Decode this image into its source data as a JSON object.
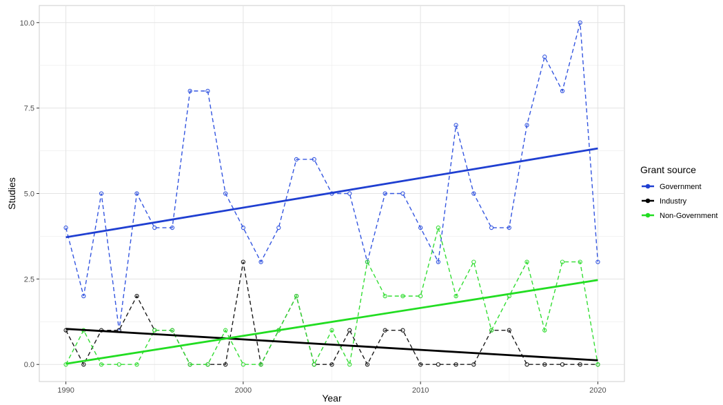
{
  "chart_data": {
    "type": "line",
    "xlabel": "Year",
    "ylabel": "Studies",
    "xlim": [
      1988.5,
      2021.5
    ],
    "ylim": [
      -0.5,
      10.5
    ],
    "x_ticks": [
      1990,
      2000,
      2010,
      2020
    ],
    "x_tick_labels": [
      "1990",
      "2000",
      "2010",
      "2020"
    ],
    "y_ticks": [
      0,
      2.5,
      5,
      7.5,
      10
    ],
    "y_tick_labels": [
      "0.0",
      "2.5",
      "5.0",
      "7.5",
      "10.0"
    ],
    "grid": true,
    "legend": {
      "title": "Grant source",
      "position": "right"
    },
    "x": [
      1990,
      1991,
      1992,
      1993,
      1994,
      1995,
      1996,
      1997,
      1998,
      1999,
      2000,
      2001,
      2002,
      2003,
      2004,
      2005,
      2006,
      2007,
      2008,
      2009,
      2010,
      2011,
      2012,
      2013,
      2014,
      2015,
      2016,
      2017,
      2018,
      2019,
      2020
    ],
    "series": [
      {
        "name": "Government",
        "color": "#1f3fd1",
        "dash_color": "#3355e0",
        "values": [
          4,
          2,
          5,
          1,
          5,
          4,
          4,
          8,
          8,
          5,
          4,
          3,
          4,
          6,
          6,
          5,
          5,
          3,
          5,
          5,
          4,
          3,
          7,
          5,
          4,
          4,
          7,
          9,
          8,
          10,
          3
        ],
        "trend": [
          3.72,
          6.32
        ]
      },
      {
        "name": "Industry",
        "color": "#000000",
        "dash_color": "#1a1a1a",
        "values": [
          1,
          0,
          1,
          1,
          2,
          1,
          1,
          0,
          0,
          0,
          3,
          0,
          1,
          2,
          0,
          0,
          1,
          0,
          1,
          1,
          0,
          0,
          0,
          0,
          1,
          1,
          0,
          0,
          0,
          0,
          0
        ],
        "trend": [
          1.04,
          0.12
        ]
      },
      {
        "name": "Non-Government",
        "color": "#22dd22",
        "dash_color": "#33dd33",
        "values": [
          0,
          1,
          0,
          0,
          0,
          1,
          1,
          0,
          0,
          1,
          0,
          0,
          1,
          2,
          0,
          1,
          0,
          3,
          2,
          2,
          2,
          4,
          2,
          3,
          1,
          2,
          3,
          1,
          3,
          3,
          0
        ],
        "trend": [
          0.02,
          2.47
        ]
      }
    ]
  }
}
